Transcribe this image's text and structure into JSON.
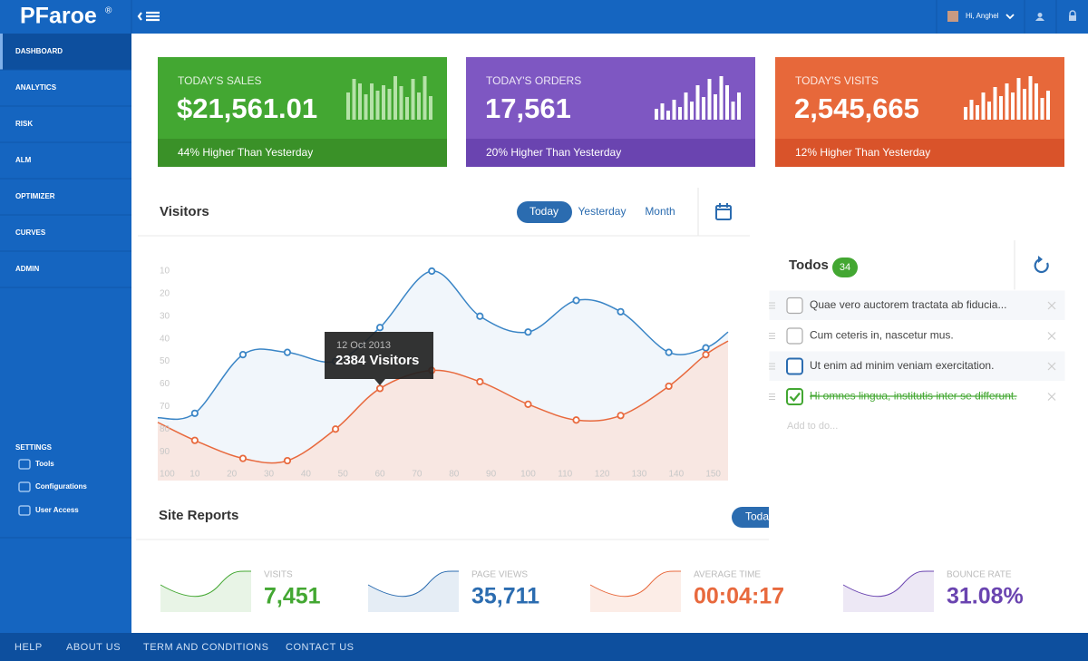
{
  "brand": {
    "name": "PFaroe",
    "mark": "®"
  },
  "topbar": {
    "user": "Hi, Anghel"
  },
  "sidebar": {
    "nav": [
      "DASHBOARD",
      "ANALYTICS",
      "RISK",
      "ALM",
      "OPTIMIZER",
      "CURVES",
      "ADMIN"
    ],
    "settings": {
      "title": "SETTINGS",
      "items": [
        "Tools",
        "Configurations",
        "User Access"
      ]
    }
  },
  "stats": [
    {
      "label": "TODAY'S SALES",
      "value": "$21,561.01",
      "note": "44% Higher Than Yesterday",
      "color": "#43a732",
      "accent": "#3a9128",
      "bar_color": "#b5e2a8",
      "bars": [
        30,
        45,
        40,
        28,
        40,
        32,
        38,
        34,
        48,
        37,
        25,
        45,
        30,
        48,
        26
      ]
    },
    {
      "label": "TODAY'S ORDERS",
      "value": "17,561",
      "note": "20% Higher Than Yesterday",
      "color": "#7e57c2",
      "accent": "#6a44b0",
      "bar_color": "#ffffff",
      "bars": [
        12,
        18,
        10,
        22,
        14,
        30,
        20,
        38,
        25,
        45,
        28,
        48,
        38,
        20,
        30
      ]
    },
    {
      "label": "TODAY'S VISITS",
      "value": "2,545,665",
      "note": "12% Higher Than Yesterday",
      "color": "#e7683a",
      "accent": "#d9532a",
      "bar_color": "#ffffff",
      "bars": [
        14,
        22,
        16,
        30,
        20,
        36,
        26,
        40,
        30,
        46,
        34,
        48,
        40,
        24,
        32
      ]
    }
  ],
  "visitors": {
    "title": "Visitors",
    "tabs": [
      "Today",
      "Yesterday",
      "Month"
    ],
    "tooltip": {
      "date": "12 Oct 2013",
      "value": "2384 Visitors"
    }
  },
  "chart_data": {
    "type": "line",
    "x": [
      0,
      10,
      23,
      35,
      48,
      60,
      74,
      87,
      100,
      113,
      125,
      138,
      148,
      154
    ],
    "xlim": [
      0,
      154
    ],
    "xticks": [
      10,
      20,
      30,
      40,
      50,
      60,
      70,
      80,
      90,
      100,
      110,
      120,
      130,
      140,
      150
    ],
    "ylim": [
      100,
      10
    ],
    "yticks": [
      10,
      20,
      30,
      40,
      50,
      60,
      70,
      80,
      90,
      100
    ],
    "series": [
      {
        "color": "#3a85c6",
        "fill": "#eef4fa",
        "values": [
          75,
          73,
          47,
          46,
          50,
          35,
          10,
          30,
          37,
          23,
          28,
          46,
          44,
          37
        ]
      },
      {
        "color": "#e8693d",
        "fill": "#f9e4dd",
        "values": [
          77,
          85,
          93,
          94,
          80,
          62,
          54,
          59,
          69,
          76,
          74,
          61,
          47,
          41
        ]
      }
    ]
  },
  "todos": {
    "title": "Todos",
    "count": 34,
    "placeholder": "Add to do...",
    "items": [
      {
        "text": "Quae vero auctorem tractata ab fiducia...",
        "done": false
      },
      {
        "text": "Cum ceteris in, nascetur mus.",
        "done": false
      },
      {
        "text": "Ut enim ad minim veniam exercitation.",
        "done": false
      },
      {
        "text": "Hi omnes lingua, institutis inter se differunt.",
        "done": true
      }
    ]
  },
  "site_reports": {
    "title": "Site Reports",
    "tab": "Today",
    "metrics": [
      {
        "label": "VISITS",
        "value": "7,451",
        "color": "#43a732"
      },
      {
        "label": "PAGE VIEWS",
        "value": "35,711",
        "color": "#2b6cb0"
      },
      {
        "label": "AVERAGE TIME",
        "value": "00:04:17",
        "color": "#e8693d"
      },
      {
        "label": "BOUNCE RATE",
        "value": "31.08%",
        "color": "#6a44b0"
      }
    ]
  },
  "footer": {
    "links": [
      "HELP",
      "ABOUT US",
      "TERM AND CONDITIONS",
      "CONTACT US"
    ]
  }
}
